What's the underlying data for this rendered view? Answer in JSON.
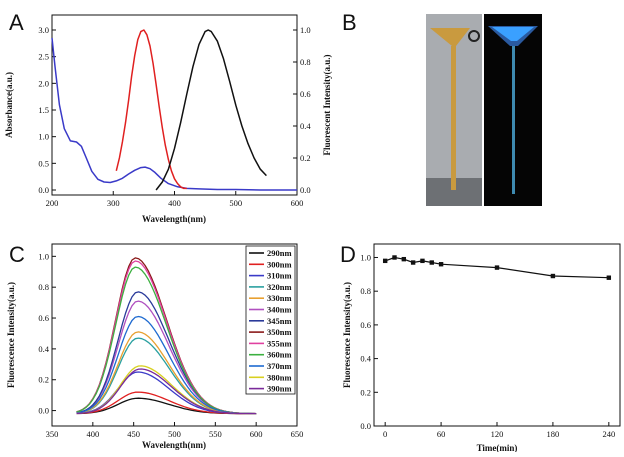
{
  "panels": {
    "A": {
      "letter": "A"
    },
    "B": {
      "letter": "B"
    },
    "C": {
      "letter": "C"
    },
    "D": {
      "letter": "D"
    }
  },
  "chart_data": [
    {
      "id": "A",
      "type": "line",
      "xlabel": "Wavelength(nm)",
      "ylabel": "Absorbance(a.u.)",
      "ylabel_right": "Fluorescent Intensity(a.u.)",
      "xlim": [
        200,
        600
      ],
      "ylim": [
        0,
        3.0
      ],
      "ylim_right": [
        0,
        1.0
      ],
      "x_ticks": [
        200,
        300,
        400,
        500,
        600
      ],
      "y_ticks": [
        0.0,
        0.5,
        1.0,
        1.5,
        2.0,
        2.5,
        3.0
      ],
      "y_ticks_right": [
        0.0,
        0.2,
        0.4,
        0.6,
        0.8,
        1.0
      ],
      "y_tick_labels": [
        "0.0",
        "0.5",
        "1.0",
        "1.5",
        "2.0",
        "2.5",
        "3.0"
      ],
      "y_tick_labels_right": [
        "0.0",
        "0.2",
        "0.4",
        "0.6",
        "0.8",
        "1.0"
      ],
      "series": [
        {
          "axis": "left",
          "color": "#3a3ac8",
          "x": [
            200,
            205,
            212,
            220,
            230,
            240,
            248,
            256,
            265,
            275,
            285,
            295,
            305,
            315,
            325,
            335,
            345,
            352,
            360,
            368,
            378,
            390,
            405,
            420,
            440,
            470,
            500,
            540,
            580,
            600
          ],
          "y": [
            2.85,
            2.3,
            1.6,
            1.15,
            0.92,
            0.9,
            0.82,
            0.6,
            0.35,
            0.2,
            0.15,
            0.14,
            0.17,
            0.22,
            0.3,
            0.37,
            0.42,
            0.43,
            0.4,
            0.33,
            0.22,
            0.12,
            0.06,
            0.03,
            0.02,
            0.01,
            0.01,
            0.0,
            0.0,
            0.0
          ]
        },
        {
          "axis": "right",
          "color": "#e02020",
          "x": [
            305,
            310,
            315,
            320,
            325,
            330,
            335,
            340,
            345,
            350,
            355,
            360,
            365,
            370,
            375,
            380,
            385,
            390,
            395,
            400,
            405,
            410,
            415,
            420
          ],
          "y": [
            0.12,
            0.2,
            0.3,
            0.42,
            0.56,
            0.71,
            0.84,
            0.94,
            0.99,
            1.0,
            0.97,
            0.9,
            0.79,
            0.66,
            0.52,
            0.39,
            0.28,
            0.19,
            0.12,
            0.07,
            0.04,
            0.02,
            0.01,
            0.01
          ]
        },
        {
          "axis": "right",
          "color": "#111111",
          "x": [
            370,
            380,
            390,
            400,
            410,
            420,
            430,
            440,
            450,
            455,
            460,
            470,
            480,
            490,
            500,
            510,
            520,
            530,
            540,
            550
          ],
          "y": [
            0.0,
            0.05,
            0.13,
            0.26,
            0.42,
            0.6,
            0.77,
            0.91,
            0.99,
            1.0,
            0.99,
            0.93,
            0.82,
            0.68,
            0.53,
            0.4,
            0.29,
            0.2,
            0.13,
            0.09
          ]
        }
      ]
    },
    {
      "id": "C",
      "type": "line",
      "xlabel": "Wavelength(nm)",
      "ylabel": "Fluorescence Intensity(a.u.)",
      "xlim": [
        350,
        650
      ],
      "ylim": [
        -0.1,
        1.08
      ],
      "x_ticks": [
        350,
        400,
        450,
        500,
        550,
        600,
        650
      ],
      "y_ticks": [
        0.0,
        0.2,
        0.4,
        0.6,
        0.8,
        1.0
      ],
      "y_tick_labels": [
        "0.0",
        "0.2",
        "0.4",
        "0.6",
        "0.8",
        "1.0"
      ],
      "shape": {
        "x_start": 380,
        "x_end": 600,
        "baseline": -0.02,
        "sigma_left": 24,
        "sigma_right": 38
      },
      "series": [
        {
          "name": "290nm",
          "color": "#111111",
          "peak_x": 455,
          "peak": 0.08
        },
        {
          "name": "300nm",
          "color": "#e02020",
          "peak_x": 455,
          "peak": 0.12
        },
        {
          "name": "310nm",
          "color": "#3a3ac8",
          "peak_x": 455,
          "peak": 0.25
        },
        {
          "name": "320nm",
          "color": "#2aa0a0",
          "peak_x": 455,
          "peak": 0.47
        },
        {
          "name": "330nm",
          "color": "#e8a030",
          "peak_x": 455,
          "peak": 0.51
        },
        {
          "name": "340nm",
          "color": "#b050c0",
          "peak_x": 455,
          "peak": 0.71
        },
        {
          "name": "345nm",
          "color": "#2a3a9a",
          "peak_x": 455,
          "peak": 0.77
        },
        {
          "name": "350nm",
          "color": "#8b1a1a",
          "peak_x": 452,
          "peak": 0.99
        },
        {
          "name": "355nm",
          "color": "#e040a0",
          "peak_x": 452,
          "peak": 0.97
        },
        {
          "name": "360nm",
          "color": "#3cb040",
          "peak_x": 452,
          "peak": 0.93
        },
        {
          "name": "370nm",
          "color": "#1e6ad0",
          "peak_x": 455,
          "peak": 0.61
        },
        {
          "name": "380nm",
          "color": "#d8d020",
          "peak_x": 458,
          "peak": 0.29
        },
        {
          "name": "390nm",
          "color": "#7a2a9a",
          "peak_x": 458,
          "peak": 0.27
        }
      ]
    },
    {
      "id": "D",
      "type": "line",
      "xlabel": "Time(min)",
      "ylabel": "Fluorescence Intensity(a.u.)",
      "xlim": [
        -12,
        252
      ],
      "ylim": [
        0,
        1.08
      ],
      "x_ticks": [
        0,
        60,
        120,
        180,
        240
      ],
      "y_ticks": [
        0.0,
        0.2,
        0.4,
        0.6,
        0.8,
        1.0
      ],
      "y_tick_labels": [
        "0.0",
        "0.2",
        "0.4",
        "0.6",
        "0.8",
        "1.0"
      ],
      "series": [
        {
          "color": "#111111",
          "x": [
            0,
            10,
            20,
            30,
            40,
            50,
            60,
            120,
            180,
            240
          ],
          "y": [
            0.98,
            1.0,
            0.99,
            0.97,
            0.98,
            0.97,
            0.96,
            0.94,
            0.89,
            0.88
          ]
        }
      ]
    }
  ],
  "photo_b": {
    "tube_color": "#c99a3f",
    "fluorescence_color": "#3aa0ff",
    "background_left": "#a9acb0",
    "background_right": "#050505"
  }
}
